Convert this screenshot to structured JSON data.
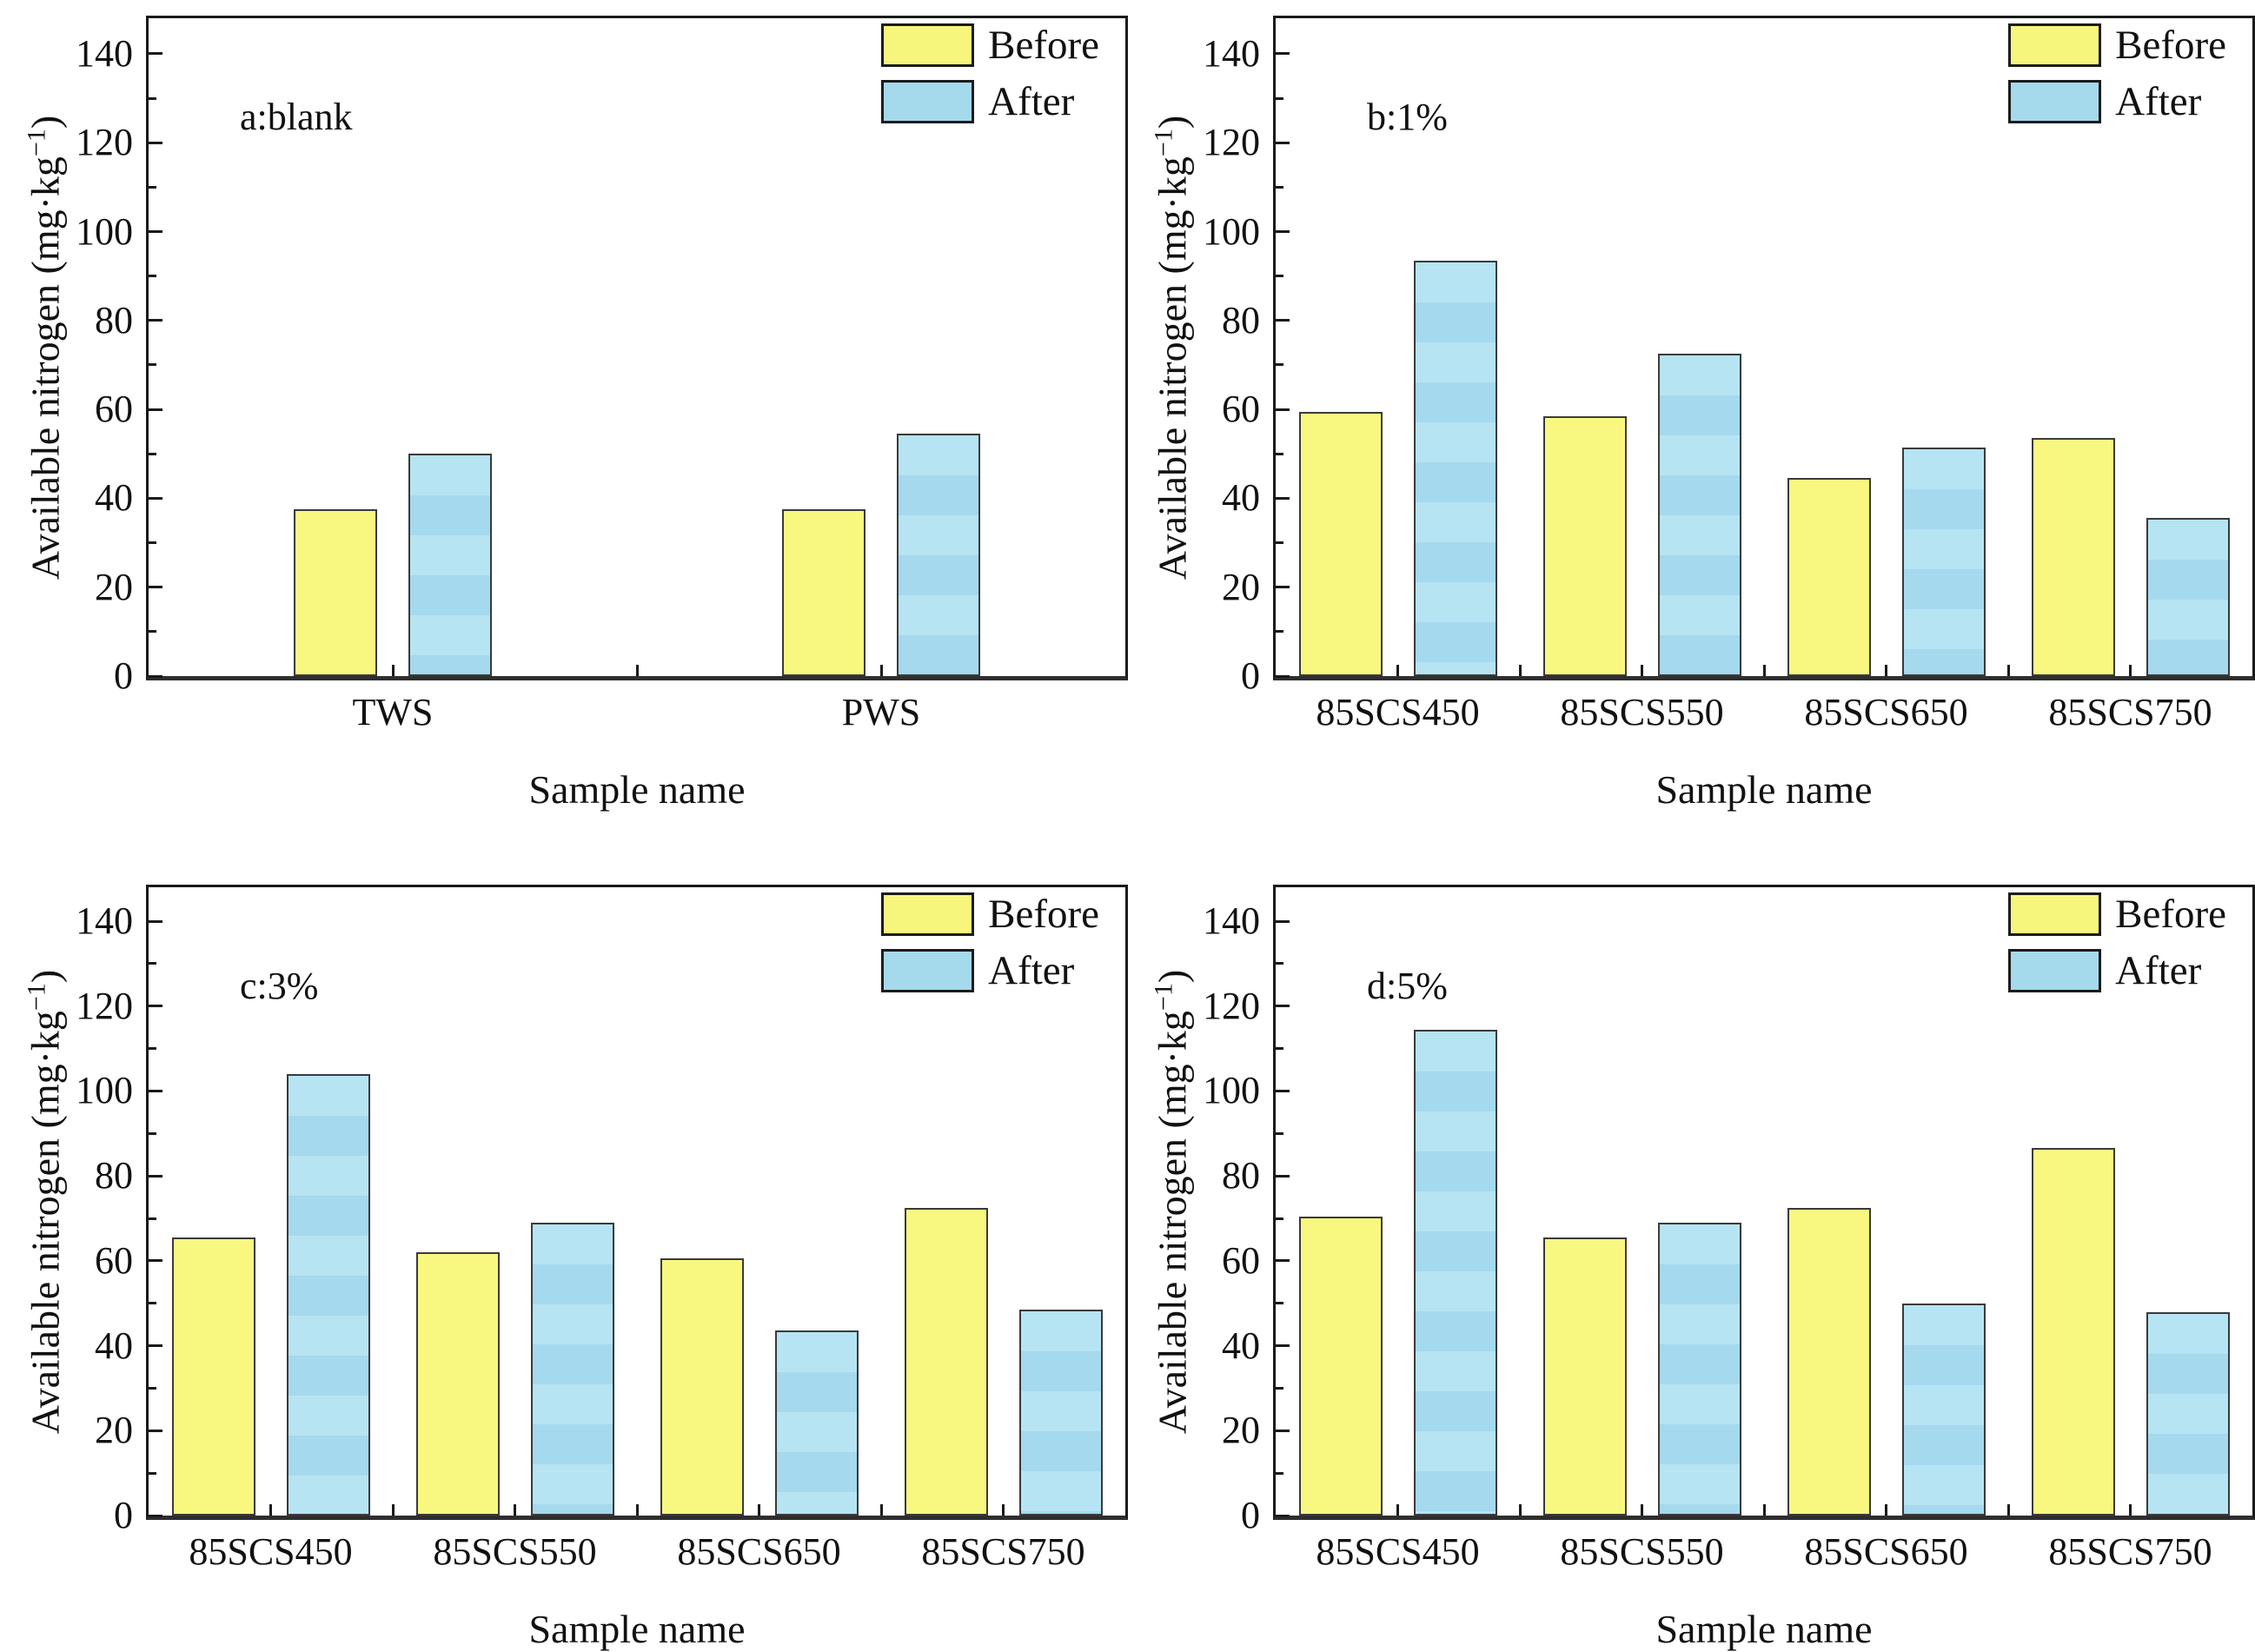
{
  "figure": {
    "xlabel": "Sample name",
    "ylabel_base": "Available nitrogen (mg·kg",
    "ylabel_sup": "−1",
    "ylabel_close": ")",
    "legend": {
      "before_label": "Before",
      "after_label": "After"
    },
    "colors": {
      "before_fill": "#f8f880",
      "after_fill": "#a8dcee",
      "after_stripe_light": "#b6e4f3",
      "bar_border": "#3a3a3a",
      "axis": "#1a1a1a",
      "text": "#111111"
    }
  },
  "chart_data": [
    {
      "type": "bar",
      "panel_label": "a:blank",
      "categories": [
        "TWS",
        "PWS"
      ],
      "series": [
        {
          "name": "Before",
          "values": [
            37.5,
            37.5
          ]
        },
        {
          "name": "After",
          "values": [
            50.0,
            54.5
          ]
        }
      ],
      "xlabel": "Sample name",
      "ylabel": "Available nitrogen (mg·kg−1)",
      "ylim": [
        0,
        148
      ],
      "yticks": [
        0,
        20,
        40,
        60,
        80,
        100,
        120,
        140
      ],
      "grid": false,
      "legend_position": "top-right"
    },
    {
      "type": "bar",
      "panel_label": "b:1%",
      "categories": [
        "85SCS450",
        "85SCS550",
        "85SCS650",
        "85SCS750"
      ],
      "series": [
        {
          "name": "Before",
          "values": [
            59.5,
            58.5,
            44.5,
            53.5
          ]
        },
        {
          "name": "After",
          "values": [
            93.5,
            72.5,
            51.5,
            35.5
          ]
        }
      ],
      "xlabel": "Sample name",
      "ylabel": "Available nitrogen (mg·kg−1)",
      "ylim": [
        0,
        148
      ],
      "yticks": [
        0,
        20,
        40,
        60,
        80,
        100,
        120,
        140
      ],
      "grid": false,
      "legend_position": "top-right"
    },
    {
      "type": "bar",
      "panel_label": "c:3%",
      "categories": [
        "85SCS450",
        "85SCS550",
        "85SCS650",
        "85SCS750"
      ],
      "series": [
        {
          "name": "Before",
          "values": [
            65.5,
            62.0,
            60.5,
            72.5
          ]
        },
        {
          "name": "After",
          "values": [
            104.0,
            69.0,
            43.5,
            48.5
          ]
        }
      ],
      "xlabel": "Sample name",
      "ylabel": "Available nitrogen (mg·kg−1)",
      "ylim": [
        0,
        148
      ],
      "yticks": [
        0,
        20,
        40,
        60,
        80,
        100,
        120,
        140
      ],
      "grid": false,
      "legend_position": "top-right"
    },
    {
      "type": "bar",
      "panel_label": "d:5%",
      "categories": [
        "85SCS450",
        "85SCS550",
        "85SCS650",
        "85SCS750"
      ],
      "series": [
        {
          "name": "Before",
          "values": [
            70.5,
            65.5,
            72.5,
            86.5
          ]
        },
        {
          "name": "After",
          "values": [
            114.5,
            69.0,
            50.0,
            48.0
          ]
        }
      ],
      "xlabel": "Sample name",
      "ylabel": "Available nitrogen (mg·kg−1)",
      "ylim": [
        0,
        148
      ],
      "yticks": [
        0,
        20,
        40,
        60,
        80,
        100,
        120,
        140
      ],
      "grid": false,
      "legend_position": "top-right"
    }
  ]
}
